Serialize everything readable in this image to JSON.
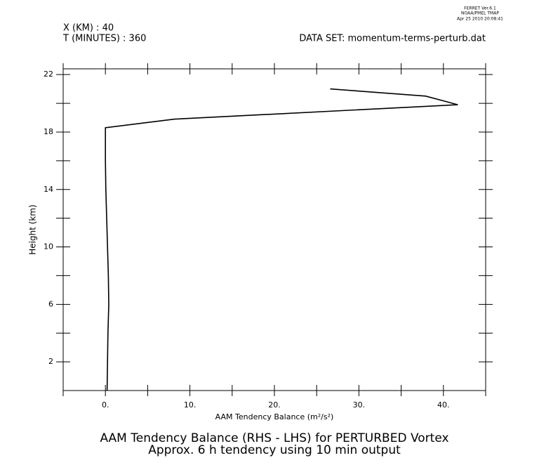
{
  "chart_data": {
    "type": "line",
    "stamp": [
      "FERRET Ver.6.1",
      "NOAA/PMEL TMAP",
      "Apr 25 2010 20:08:41"
    ],
    "header_left": [
      "X (KM) : 40",
      "T (MINUTES) : 360"
    ],
    "header_right": "DATA SET: momentum-terms-perturb.dat",
    "title": [
      "AAM Tendency Balance (RHS - LHS) for PERTURBED Vortex",
      "Approx. 6 h tendency using 10 min output"
    ],
    "x_label": "AAM Tendency Balance (m²/s²)",
    "y_label": "Height (km)",
    "color": "#000000",
    "x": [
      0.2,
      0.25,
      0.3,
      0.4,
      0.35,
      0.25,
      0.15,
      0.05,
      0,
      0,
      8.2,
      41.7,
      37.9,
      26.6
    ],
    "y": [
      0,
      2,
      4,
      6,
      8,
      10,
      12,
      14,
      16,
      18.3,
      18.9,
      19.9,
      20.5,
      21.0
    ],
    "xlim": [
      -5,
      45
    ],
    "ylim": [
      0,
      22.4
    ],
    "xticks": [
      {
        "value": 0,
        "label": "0."
      },
      {
        "value": 10,
        "label": "10."
      },
      {
        "value": 20,
        "label": "20."
      },
      {
        "value": 30,
        "label": "30."
      },
      {
        "value": 40,
        "label": "40."
      }
    ],
    "xminor": [
      -5,
      5,
      15,
      25,
      35,
      45
    ],
    "yticks": [
      2,
      6,
      10,
      14,
      18,
      22
    ],
    "yminor": [
      4,
      8,
      12,
      16,
      20
    ]
  }
}
